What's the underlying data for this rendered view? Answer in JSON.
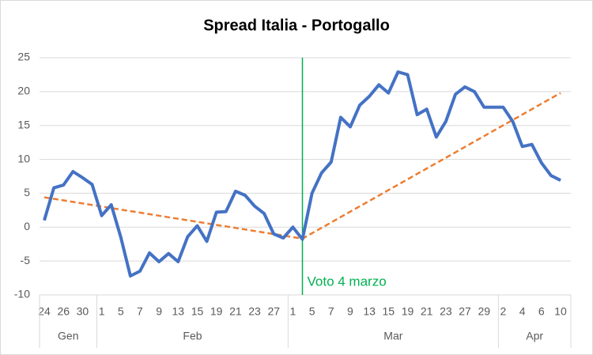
{
  "chart_data": {
    "type": "line",
    "title": "Spread Italia - Portogallo",
    "categories": [
      "24",
      null,
      "26",
      null,
      "30",
      null,
      "1",
      null,
      "5",
      null,
      "7",
      null,
      "9",
      null,
      "13",
      null,
      "15",
      null,
      "19",
      null,
      "21",
      null,
      "23",
      null,
      "27",
      null,
      "1",
      null,
      "5",
      null,
      "7",
      null,
      "9",
      null,
      "13",
      null,
      "15",
      null,
      "19",
      null,
      "21",
      null,
      "23",
      null,
      "27",
      null,
      "29",
      null,
      "2",
      null,
      "4",
      null,
      "6",
      null,
      "10"
    ],
    "category_groups": [
      {
        "label": "Gen",
        "span": 6
      },
      {
        "label": "Feb",
        "span": 20
      },
      {
        "label": "Mar",
        "span": 22
      },
      {
        "label": "Apr",
        "span": 7
      }
    ],
    "series": [
      {
        "color": "#4472c4",
        "style": "solid",
        "values": [
          1,
          5.8,
          6.2,
          8.2,
          7.3,
          6.3,
          1.7,
          3.3,
          -1.5,
          -7.2,
          -6.5,
          -3.8,
          -5.1,
          -3.9,
          -5.1,
          -1.4,
          0.2,
          -2.1,
          2.2,
          2.3,
          5.3,
          4.7,
          3.1,
          2.0,
          -1.0,
          -1.6,
          0,
          -1.8,
          5,
          8,
          9.6,
          16.2,
          14.8,
          18,
          19.3,
          21,
          19.8,
          22.9,
          22.5,
          16.6,
          17.4,
          13.3,
          15.6,
          19.6,
          20.7,
          20,
          17.7,
          17.7,
          17.7,
          15.6,
          11.9,
          12.2,
          9.5,
          7.6,
          6.9
        ]
      },
      {
        "color": "#ed7d31",
        "style": "dashed",
        "values": [
          4.4,
          4.17,
          3.95,
          3.72,
          3.5,
          3.27,
          3.04,
          2.82,
          2.59,
          2.37,
          2.14,
          1.91,
          1.69,
          1.46,
          1.24,
          1.01,
          0.79,
          0.56,
          0.33,
          0.11,
          -0.12,
          -0.34,
          -0.57,
          -0.8,
          -1.02,
          -1.25,
          -1.47,
          -1.7,
          -0.9,
          -0.11,
          0.69,
          1.49,
          2.28,
          3.08,
          3.87,
          4.67,
          5.47,
          6.26,
          7.06,
          7.86,
          8.65,
          9.45,
          10.24,
          11.04,
          11.84,
          12.63,
          13.43,
          14.23,
          15.02,
          15.82,
          16.61,
          17.41,
          18.21,
          19.0,
          19.8
        ]
      }
    ],
    "annotation": {
      "text": "Voto 4 marzo",
      "index": 27,
      "color": "#00b050"
    },
    "ylim": [
      -10,
      25
    ],
    "yticks": [
      -10,
      -5,
      0,
      5,
      10,
      15,
      20,
      25
    ],
    "grid": true
  }
}
